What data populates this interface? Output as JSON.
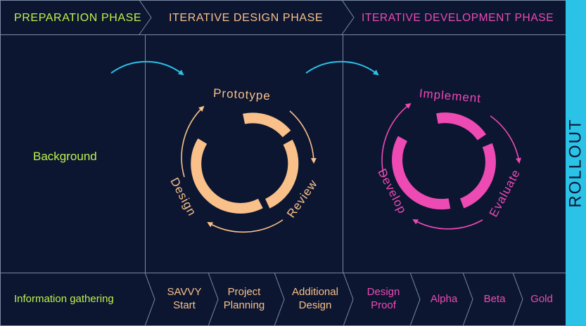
{
  "colors": {
    "background": "#0c1631",
    "grid_line": "#7c8aa3",
    "preparation": "#bdf14b",
    "design": "#f9c08a",
    "development": "#ee4ab4",
    "rollout": "#2bc2e8",
    "rollout_text": "#0c1631"
  },
  "phases": {
    "preparation": "PREPARATION PHASE",
    "design": "ITERATIVE DESIGN PHASE",
    "development": "ITERATIVE DEVELOPMENT PHASE",
    "rollout": "ROLLOUT"
  },
  "preparation": {
    "label": "Background"
  },
  "design_cycle": {
    "top": "Prototype",
    "right": "Review",
    "left": "Design"
  },
  "development_cycle": {
    "top": "Implement",
    "right": "Evaluate",
    "left": "Develop"
  },
  "steps": {
    "info": "Information gathering",
    "savvy": [
      "SAVVY",
      "Start"
    ],
    "project": [
      "Project",
      "Planning"
    ],
    "additional": [
      "Additional",
      "Design"
    ],
    "proof": [
      "Design",
      "Proof"
    ],
    "alpha": "Alpha",
    "beta": "Beta",
    "gold": "Gold"
  }
}
